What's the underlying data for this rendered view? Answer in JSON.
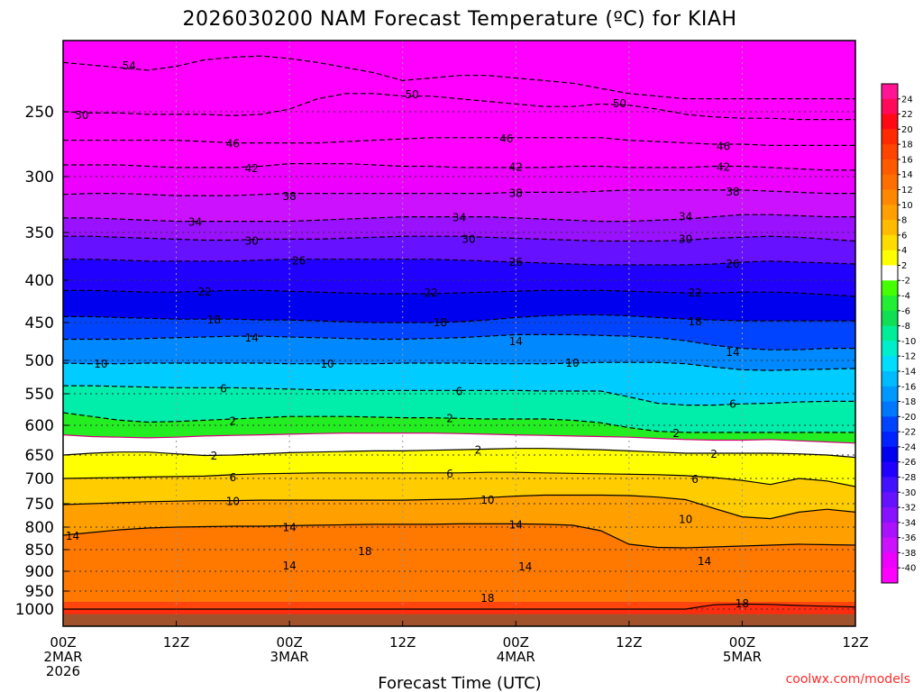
{
  "title": "2026030200 NAM Forecast Temperature (ºC) for KIAH",
  "x_axis_title": "Forecast Time (UTC)",
  "credit": "coolwx.com/models",
  "chart_data": {
    "type": "heatmap",
    "title": "2026030200 NAM Forecast Temperature (ºC) for KIAH",
    "xlabel": "Forecast Time (UTC)",
    "ylabel": "",
    "x_hours": [
      0,
      84
    ],
    "x_ticks": [
      {
        "hour": 0,
        "lines": [
          "00Z",
          "2MAR",
          "2026"
        ]
      },
      {
        "hour": 12,
        "lines": [
          "12Z"
        ]
      },
      {
        "hour": 24,
        "lines": [
          "00Z",
          "3MAR"
        ]
      },
      {
        "hour": 36,
        "lines": [
          "12Z"
        ]
      },
      {
        "hour": 48,
        "lines": [
          "00Z",
          "4MAR"
        ]
      },
      {
        "hour": 60,
        "lines": [
          "12Z"
        ]
      },
      {
        "hour": 72,
        "lines": [
          "00Z",
          "5MAR"
        ]
      },
      {
        "hour": 84,
        "lines": [
          "12Z"
        ]
      }
    ],
    "y_ticks": [
      250,
      300,
      350,
      400,
      450,
      500,
      550,
      600,
      650,
      700,
      750,
      800,
      850,
      900,
      950,
      1000
    ],
    "y_range_hpa": [
      200,
      1030
    ],
    "ground_level_hpa": 1012,
    "colorbar": {
      "labels": [
        "24",
        "22",
        "20",
        "18",
        "16",
        "14",
        "12",
        "10",
        "8",
        "6",
        "4",
        "2",
        "-2",
        "-4",
        "-6",
        "-8",
        "-10",
        "-12",
        "-14",
        "-16",
        "-18",
        "-20",
        "-22",
        "-24",
        "-26",
        "-28",
        "-30",
        "-32",
        "-34",
        "-36",
        "-38",
        "-40"
      ],
      "colors": [
        "#ff1493",
        "#ff0a5a",
        "#ff0a14",
        "#ff2a00",
        "#ff4400",
        "#ff5a00",
        "#ff6e00",
        "#ff8800",
        "#ffa000",
        "#ffbb00",
        "#ffdc00",
        "#ffff00",
        "#ffffff",
        "#44ff00",
        "#22ee33",
        "#11dd55",
        "#00ee99",
        "#00eecc",
        "#00ddff",
        "#00bbff",
        "#0099ff",
        "#0077ff",
        "#0044ff",
        "#0022ff",
        "#0000ee",
        "#2200ff",
        "#4411ff",
        "#6611ff",
        "#8811ff",
        "#aa11ff",
        "#cc11ff",
        "#ee00ff",
        "#ff00ff"
      ]
    },
    "contours": [
      {
        "value": -54,
        "pressure": [
          212,
          214,
          216,
          218,
          215,
          210,
          208,
          207,
          209,
          212,
          216,
          220,
          226,
          224,
          222,
          222,
          224,
          226,
          228,
          232,
          236,
          238,
          240,
          240,
          240,
          240,
          240,
          240,
          240
        ],
        "dashed": true
      },
      {
        "value": -50,
        "pressure": [
          250,
          251,
          251,
          252,
          252,
          252,
          253,
          252,
          248,
          240,
          236,
          236,
          238,
          238,
          240,
          242,
          244,
          246,
          246,
          244,
          245,
          248,
          252,
          254,
          255,
          255,
          256,
          256,
          256
        ],
        "dashed": true
      },
      {
        "value": -46,
        "pressure": [
          272,
          272,
          272,
          272,
          272,
          273,
          274,
          274,
          274,
          274,
          273,
          272,
          271,
          270,
          270,
          270,
          270,
          270,
          270,
          270,
          272,
          273,
          274,
          275,
          275,
          276,
          276,
          276,
          276
        ],
        "dashed": true
      },
      {
        "value": -42,
        "pressure": [
          291,
          291,
          291,
          292,
          293,
          293,
          293,
          292,
          290,
          290,
          290,
          291,
          292,
          292,
          293,
          293,
          293,
          293,
          292,
          292,
          293,
          293,
          293,
          292,
          292,
          293,
          294,
          295,
          295
        ],
        "dashed": true
      },
      {
        "value": -38,
        "pressure": [
          316,
          315,
          315,
          316,
          317,
          317,
          317,
          316,
          315,
          315,
          315,
          315,
          315,
          315,
          315,
          315,
          314,
          314,
          314,
          313,
          312,
          312,
          312,
          312,
          312,
          313,
          314,
          315,
          315
        ],
        "dashed": true
      },
      {
        "value": -34,
        "pressure": [
          337,
          337,
          338,
          339,
          340,
          340,
          340,
          340,
          340,
          339,
          338,
          337,
          336,
          336,
          336,
          336,
          337,
          338,
          339,
          340,
          340,
          339,
          338,
          336,
          334,
          334,
          335,
          336,
          336
        ],
        "dashed": true
      },
      {
        "value": -30,
        "pressure": [
          354,
          354,
          355,
          356,
          357,
          358,
          358,
          357,
          357,
          357,
          356,
          355,
          354,
          354,
          354,
          355,
          356,
          357,
          358,
          359,
          359,
          359,
          358,
          356,
          355,
          354,
          355,
          357,
          359
        ],
        "dashed": true
      },
      {
        "value": -26,
        "pressure": [
          378,
          378,
          379,
          380,
          380,
          380,
          380,
          379,
          378,
          378,
          378,
          378,
          378,
          378,
          379,
          380,
          381,
          382,
          383,
          384,
          384,
          384,
          384,
          383,
          381,
          380,
          381,
          382,
          383
        ],
        "dashed": true
      },
      {
        "value": -22,
        "pressure": [
          412,
          412,
          413,
          414,
          414,
          413,
          412,
          412,
          413,
          414,
          415,
          416,
          416,
          416,
          415,
          414,
          413,
          412,
          412,
          412,
          413,
          414,
          415,
          415,
          414,
          414,
          415,
          417,
          419
        ],
        "dashed": true
      },
      {
        "value": -18,
        "pressure": [
          443,
          443,
          444,
          445,
          446,
          446,
          446,
          447,
          447,
          448,
          449,
          450,
          450,
          450,
          449,
          447,
          444,
          442,
          441,
          441,
          442,
          444,
          446,
          447,
          448,
          448,
          448,
          448,
          448
        ],
        "dashed": true
      },
      {
        "value": -14,
        "pressure": [
          472,
          472,
          472,
          471,
          470,
          469,
          468,
          468,
          469,
          470,
          471,
          472,
          472,
          471,
          470,
          468,
          466,
          466,
          466,
          467,
          468,
          470,
          474,
          480,
          484,
          486,
          486,
          484,
          484
        ],
        "dashed": true
      },
      {
        "value": -10,
        "pressure": [
          504,
          505,
          505,
          504,
          504,
          504,
          504,
          504,
          505,
          505,
          505,
          505,
          504,
          504,
          504,
          505,
          505,
          505,
          504,
          503,
          503,
          503,
          505,
          510,
          514,
          515,
          514,
          513,
          512
        ],
        "dashed": true
      },
      {
        "value": -6,
        "pressure": [
          538,
          538,
          539,
          540,
          541,
          541,
          541,
          542,
          543,
          544,
          545,
          545,
          545,
          545,
          545,
          545,
          545,
          546,
          546,
          546,
          555,
          565,
          568,
          568,
          566,
          565,
          563,
          562,
          562
        ],
        "dashed": true
      },
      {
        "value": -2,
        "pressure": [
          580,
          586,
          592,
          595,
          594,
          592,
          590,
          588,
          586,
          586,
          586,
          587,
          588,
          588,
          589,
          590,
          590,
          590,
          592,
          596,
          604,
          610,
          612,
          612,
          612,
          612,
          612,
          612,
          612
        ],
        "dashed": true
      },
      {
        "value": 0,
        "pressure": [
          616,
          619,
          620,
          621,
          620,
          618,
          617,
          616,
          615,
          614,
          613,
          613,
          613,
          613,
          614,
          615,
          616,
          617,
          618,
          619,
          620,
          622,
          624,
          625,
          625,
          624,
          626,
          628,
          630
        ],
        "dashed": false,
        "color": "#d6007a"
      },
      {
        "value": 2,
        "pressure": [
          650,
          647,
          645,
          645,
          648,
          651,
          650,
          648,
          646,
          645,
          644,
          643,
          643,
          642,
          641,
          640,
          639,
          639,
          640,
          641,
          643,
          645,
          647,
          647,
          647,
          647,
          648,
          650,
          655
        ],
        "dashed": false
      },
      {
        "value": 6,
        "pressure": [
          700,
          699,
          698,
          697,
          696,
          695,
          692,
          690,
          689,
          688,
          688,
          688,
          688,
          688,
          688,
          687,
          687,
          688,
          689,
          690,
          691,
          692,
          694,
          698,
          704,
          712,
          700,
          705,
          716
        ],
        "dashed": false
      },
      {
        "value": 10,
        "pressure": [
          752,
          750,
          748,
          746,
          745,
          744,
          744,
          743,
          743,
          743,
          743,
          743,
          743,
          742,
          741,
          738,
          735,
          733,
          733,
          733,
          734,
          737,
          742,
          760,
          778,
          782,
          768,
          762,
          768
        ],
        "dashed": false
      },
      {
        "value": 14,
        "pressure": [
          818,
          812,
          806,
          802,
          800,
          799,
          798,
          798,
          797,
          796,
          795,
          794,
          794,
          794,
          793,
          793,
          793,
          794,
          796,
          808,
          838,
          845,
          846,
          844,
          842,
          840,
          838,
          839,
          840
        ],
        "dashed": false
      },
      {
        "value": 18,
        "pressure": [
          1000,
          1000,
          1000,
          1000,
          1000,
          1000,
          1000,
          1000,
          1000,
          1000,
          1000,
          1000,
          1000,
          1000,
          1000,
          1000,
          1000,
          1000,
          1000,
          1000,
          1000,
          1000,
          1000,
          988,
          986,
          987,
          990,
          992,
          994
        ],
        "dashed": false
      }
    ],
    "contour_labels": [
      {
        "text": "54",
        "hour": 7,
        "hpa": 214
      },
      {
        "text": "50",
        "hour": 2,
        "hpa": 252
      },
      {
        "text": "50",
        "hour": 37,
        "hpa": 236
      },
      {
        "text": "50",
        "hour": 59,
        "hpa": 243
      },
      {
        "text": "46",
        "hour": 18,
        "hpa": 274
      },
      {
        "text": "46",
        "hour": 47,
        "hpa": 270
      },
      {
        "text": "46",
        "hour": 70,
        "hpa": 276
      },
      {
        "text": "42",
        "hour": 20,
        "hpa": 293
      },
      {
        "text": "42",
        "hour": 48,
        "hpa": 292
      },
      {
        "text": "42",
        "hour": 70,
        "hpa": 292
      },
      {
        "text": "38",
        "hour": 24,
        "hpa": 317
      },
      {
        "text": "38",
        "hour": 48,
        "hpa": 314
      },
      {
        "text": "38",
        "hour": 71,
        "hpa": 313
      },
      {
        "text": "34",
        "hour": 14,
        "hpa": 340
      },
      {
        "text": "34",
        "hour": 42,
        "hpa": 336
      },
      {
        "text": "34",
        "hour": 66,
        "hpa": 335
      },
      {
        "text": "30",
        "hour": 20,
        "hpa": 358
      },
      {
        "text": "30",
        "hour": 43,
        "hpa": 356
      },
      {
        "text": "30",
        "hour": 66,
        "hpa": 356
      },
      {
        "text": "26",
        "hour": 25,
        "hpa": 379
      },
      {
        "text": "26",
        "hour": 48,
        "hpa": 380
      },
      {
        "text": "26",
        "hour": 71,
        "hpa": 382
      },
      {
        "text": "22",
        "hour": 15,
        "hpa": 413
      },
      {
        "text": "22",
        "hour": 39,
        "hpa": 414
      },
      {
        "text": "22",
        "hour": 67,
        "hpa": 414
      },
      {
        "text": "18",
        "hour": 16,
        "hpa": 446
      },
      {
        "text": "18",
        "hour": 40,
        "hpa": 449
      },
      {
        "text": "18",
        "hour": 67,
        "hpa": 448
      },
      {
        "text": "14",
        "hour": 20,
        "hpa": 469
      },
      {
        "text": "14",
        "hour": 48,
        "hpa": 474
      },
      {
        "text": "14",
        "hour": 71,
        "hpa": 488
      },
      {
        "text": "10",
        "hour": 4,
        "hpa": 504
      },
      {
        "text": "10",
        "hour": 28,
        "hpa": 504
      },
      {
        "text": "10",
        "hour": 54,
        "hpa": 503
      },
      {
        "text": "6",
        "hour": 17,
        "hpa": 541
      },
      {
        "text": "6",
        "hour": 42,
        "hpa": 545
      },
      {
        "text": "6",
        "hour": 71,
        "hpa": 565
      },
      {
        "text": "2",
        "hour": 18,
        "hpa": 592
      },
      {
        "text": "2",
        "hour": 41,
        "hpa": 588
      },
      {
        "text": "2",
        "hour": 65,
        "hpa": 612
      },
      {
        "text": "2",
        "hour": 16,
        "hpa": 650
      },
      {
        "text": "2",
        "hour": 44,
        "hpa": 640
      },
      {
        "text": "2",
        "hour": 69,
        "hpa": 647
      },
      {
        "text": "6",
        "hour": 18,
        "hpa": 696
      },
      {
        "text": "6",
        "hour": 41,
        "hpa": 688
      },
      {
        "text": "6",
        "hour": 67,
        "hpa": 700
      },
      {
        "text": "10",
        "hour": 18,
        "hpa": 744
      },
      {
        "text": "10",
        "hour": 45,
        "hpa": 741
      },
      {
        "text": "10",
        "hour": 66,
        "hpa": 782
      },
      {
        "text": "14",
        "hour": 1,
        "hpa": 818
      },
      {
        "text": "14",
        "hour": 24,
        "hpa": 799
      },
      {
        "text": "14",
        "hour": 48,
        "hpa": 793
      },
      {
        "text": "18",
        "hour": 32,
        "hpa": 852
      },
      {
        "text": "14",
        "hour": 24,
        "hpa": 885
      },
      {
        "text": "14",
        "hour": 49,
        "hpa": 888
      },
      {
        "text": "14",
        "hour": 68,
        "hpa": 875
      },
      {
        "text": "18",
        "hour": 45,
        "hpa": 967
      },
      {
        "text": "18",
        "hour": 72,
        "hpa": 982
      }
    ]
  }
}
